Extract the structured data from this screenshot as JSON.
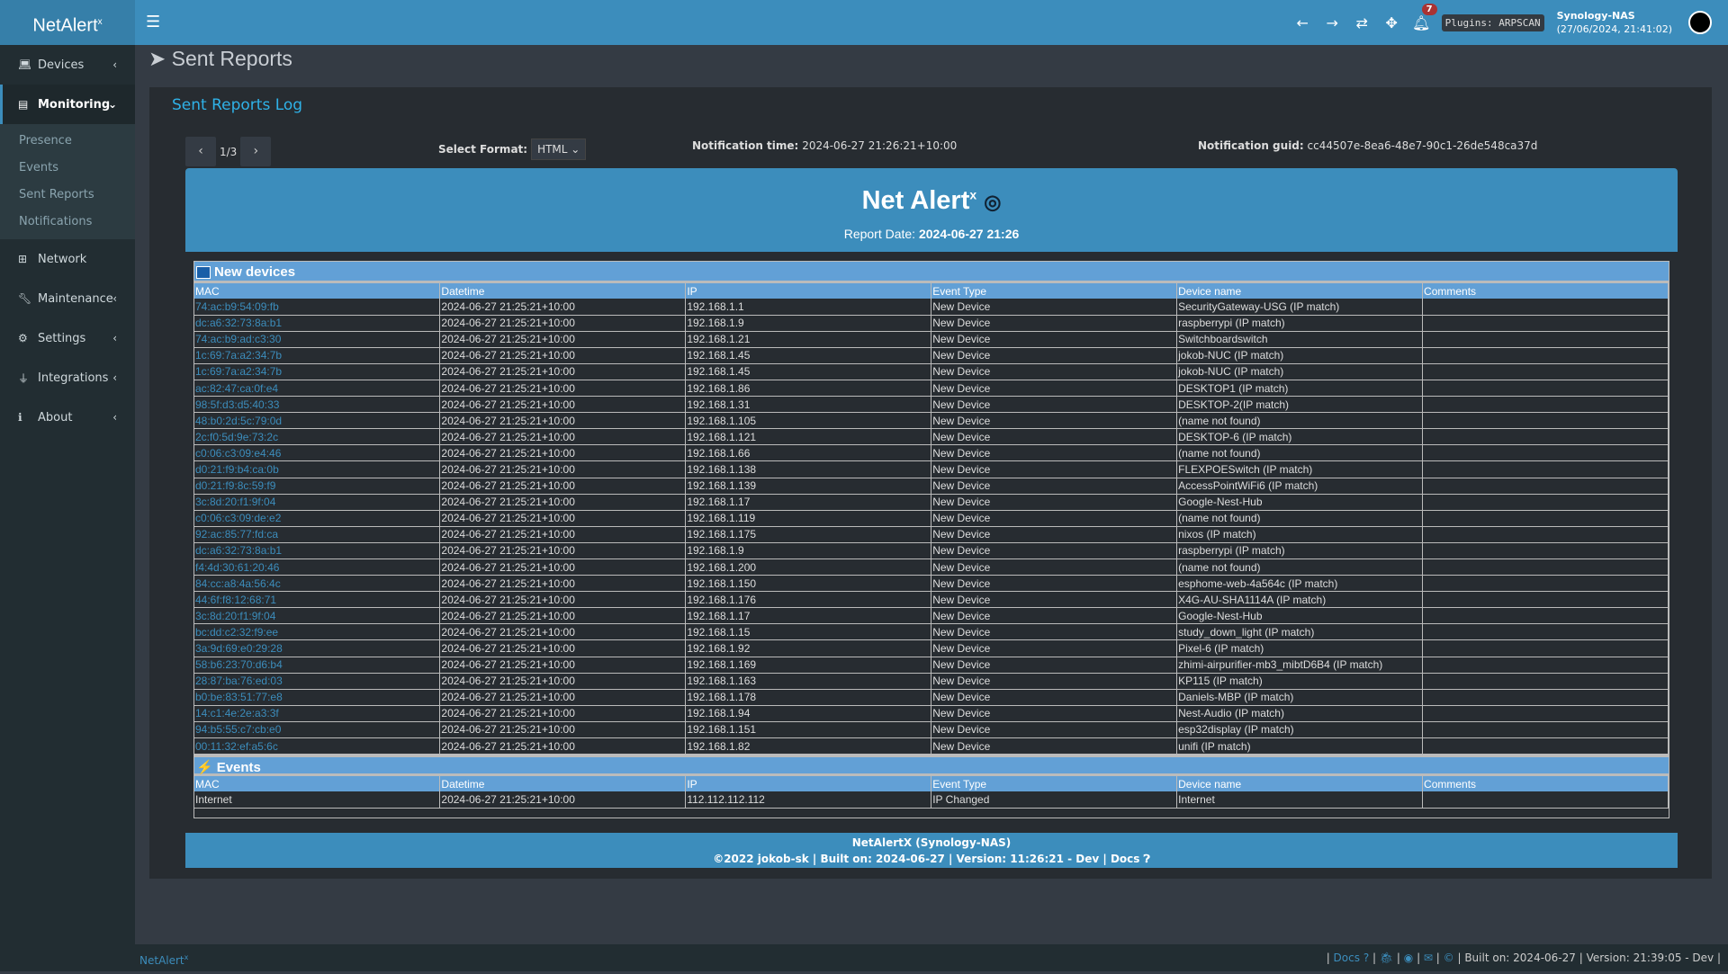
{
  "app": {
    "logo": "NetAlert",
    "logo_sup": "x"
  },
  "header": {
    "notification_count": "7",
    "plugins": "Plugins: ARPSCAN",
    "host": "Synology-NAS",
    "datetime": "(27/06/2024, 21:41:02)"
  },
  "sidebar": {
    "items": [
      {
        "label": "Devices",
        "icon": "laptop-icon"
      },
      {
        "label": "Monitoring",
        "icon": "chart-icon"
      },
      {
        "label": "Network",
        "icon": "network-icon"
      },
      {
        "label": "Maintenance",
        "icon": "wrench-icon"
      },
      {
        "label": "Settings",
        "icon": "gear-icon"
      },
      {
        "label": "Integrations",
        "icon": "plug-icon"
      },
      {
        "label": "About",
        "icon": "info-icon"
      }
    ],
    "submenu": [
      "Presence",
      "Events",
      "Sent Reports",
      "Notifications"
    ]
  },
  "page": {
    "title": "Sent Reports",
    "box_title": "Sent Reports Log",
    "page_indicator": "1/3",
    "format_label": "Select Format:",
    "format_value": "HTML",
    "notification_time_label": "Notification time:",
    "notification_time": "2024-06-27 21:26:21+10:00",
    "notification_guid_label": "Notification guid:",
    "notification_guid": "cc44507e-8ea6-48e7-90c1-26de548ca37d"
  },
  "report": {
    "title": "Net Alert",
    "title_sup": "x",
    "report_date_label": "Report Date:",
    "report_date": "2024-06-27 21:26",
    "columns": [
      "MAC",
      "Datetime",
      "IP",
      "Event Type",
      "Device name",
      "Comments"
    ],
    "new_devices_title": "New devices",
    "new_devices": [
      [
        "74:ac:b9:54:09:fb",
        "2024-06-27 21:25:21+10:00",
        "192.168.1.1",
        "New Device",
        "SecurityGateway-USG (IP match)",
        ""
      ],
      [
        "dc:a6:32:73:8a:b1",
        "2024-06-27 21:25:21+10:00",
        "192.168.1.9",
        "New Device",
        "raspberrypi (IP match)",
        ""
      ],
      [
        "74:ac:b9:ad:c3:30",
        "2024-06-27 21:25:21+10:00",
        "192.168.1.21",
        "New Device",
        "Switchboardswitch",
        ""
      ],
      [
        "1c:69:7a:a2:34:7b",
        "2024-06-27 21:25:21+10:00",
        "192.168.1.45",
        "New Device",
        "jokob-NUC (IP match)",
        ""
      ],
      [
        "1c:69:7a:a2:34:7b",
        "2024-06-27 21:25:21+10:00",
        "192.168.1.45",
        "New Device",
        "jokob-NUC (IP match)",
        ""
      ],
      [
        "ac:82:47:ca:0f:e4",
        "2024-06-27 21:25:21+10:00",
        "192.168.1.86",
        "New Device",
        "DESKTOP1 (IP match)",
        ""
      ],
      [
        "98:5f:d3:d5:40:33",
        "2024-06-27 21:25:21+10:00",
        "192.168.1.31",
        "New Device",
        "DESKTOP-2(IP match)",
        ""
      ],
      [
        "48:b0:2d:5c:79:0d",
        "2024-06-27 21:25:21+10:00",
        "192.168.1.105",
        "New Device",
        "(name not found)",
        ""
      ],
      [
        "2c:f0:5d:9e:73:2c",
        "2024-06-27 21:25:21+10:00",
        "192.168.1.121",
        "New Device",
        "DESKTOP-6 (IP match)",
        ""
      ],
      [
        "c0:06:c3:09:e4:46",
        "2024-06-27 21:25:21+10:00",
        "192.168.1.66",
        "New Device",
        "(name not found)",
        ""
      ],
      [
        "d0:21:f9:b4:ca:0b",
        "2024-06-27 21:25:21+10:00",
        "192.168.1.138",
        "New Device",
        "FLEXPOESwitch (IP match)",
        ""
      ],
      [
        "d0:21:f9:8c:59:f9",
        "2024-06-27 21:25:21+10:00",
        "192.168.1.139",
        "New Device",
        "AccessPointWiFi6 (IP match)",
        ""
      ],
      [
        "3c:8d:20:f1:9f:04",
        "2024-06-27 21:25:21+10:00",
        "192.168.1.17",
        "New Device",
        "Google-Nest-Hub",
        ""
      ],
      [
        "c0:06:c3:09:de:e2",
        "2024-06-27 21:25:21+10:00",
        "192.168.1.119",
        "New Device",
        "(name not found)",
        ""
      ],
      [
        "92:ac:85:77:fd:ca",
        "2024-06-27 21:25:21+10:00",
        "192.168.1.175",
        "New Device",
        "nixos (IP match)",
        ""
      ],
      [
        "dc:a6:32:73:8a:b1",
        "2024-06-27 21:25:21+10:00",
        "192.168.1.9",
        "New Device",
        "raspberrypi (IP match)",
        ""
      ],
      [
        "f4:4d:30:61:20:46",
        "2024-06-27 21:25:21+10:00",
        "192.168.1.200",
        "New Device",
        "(name not found)",
        ""
      ],
      [
        "84:cc:a8:4a:56:4c",
        "2024-06-27 21:25:21+10:00",
        "192.168.1.150",
        "New Device",
        "esphome-web-4a564c (IP match)",
        ""
      ],
      [
        "44:6f:f8:12:68:71",
        "2024-06-27 21:25:21+10:00",
        "192.168.1.176",
        "New Device",
        "X4G-AU-SHA1114A (IP match)",
        ""
      ],
      [
        "3c:8d:20:f1:9f:04",
        "2024-06-27 21:25:21+10:00",
        "192.168.1.17",
        "New Device",
        "Google-Nest-Hub",
        ""
      ],
      [
        "bc:dd:c2:32:f9:ee",
        "2024-06-27 21:25:21+10:00",
        "192.168.1.15",
        "New Device",
        "study_down_light (IP match)",
        ""
      ],
      [
        "3a:9d:69:e0:29:28",
        "2024-06-27 21:25:21+10:00",
        "192.168.1.92",
        "New Device",
        "Pixel-6 (IP match)",
        ""
      ],
      [
        "58:b6:23:70:d6:b4",
        "2024-06-27 21:25:21+10:00",
        "192.168.1.169",
        "New Device",
        "zhimi-airpurifier-mb3_mibtD6B4 (IP match)",
        ""
      ],
      [
        "28:87:ba:76:ed:03",
        "2024-06-27 21:25:21+10:00",
        "192.168.1.163",
        "New Device",
        "KP115 (IP match)",
        ""
      ],
      [
        "b0:be:83:51:77:e8",
        "2024-06-27 21:25:21+10:00",
        "192.168.1.178",
        "New Device",
        "Daniels-MBP (IP match)",
        ""
      ],
      [
        "14:c1:4e:2e:a3:3f",
        "2024-06-27 21:25:21+10:00",
        "192.168.1.94",
        "New Device",
        "Nest-Audio (IP match)",
        ""
      ],
      [
        "94:b5:55:c7:cb:e0",
        "2024-06-27 21:25:21+10:00",
        "192.168.1.151",
        "New Device",
        "esp32display (IP match)",
        ""
      ],
      [
        "00:11:32:ef:a5:6c",
        "2024-06-27 21:25:21+10:00",
        "192.168.1.82",
        "New Device",
        "unifi (IP match)",
        ""
      ]
    ],
    "events_title": "Events",
    "events": [
      [
        "Internet",
        "2024-06-27 21:25:21+10:00",
        "112.112.112.112",
        "IP Changed",
        "Internet",
        ""
      ]
    ],
    "footer_line1": "NetAlertX (Synology-NAS)",
    "footer_line2": "©2022 jokob-sk | Built on: 2024-06-27 | Version: 11:26:21 - Dev | Docs"
  },
  "footer": {
    "brand": "NetAlert",
    "brand_sup": "x",
    "docs": "Docs",
    "built": "Built on: 2024-06-27",
    "version": "Version: 21:39:05 - Dev"
  },
  "colors": {
    "header": "#3c8dbc",
    "sidebar": "#222d32",
    "table_header": "#62a0d6",
    "link": "#3c8dbc"
  }
}
